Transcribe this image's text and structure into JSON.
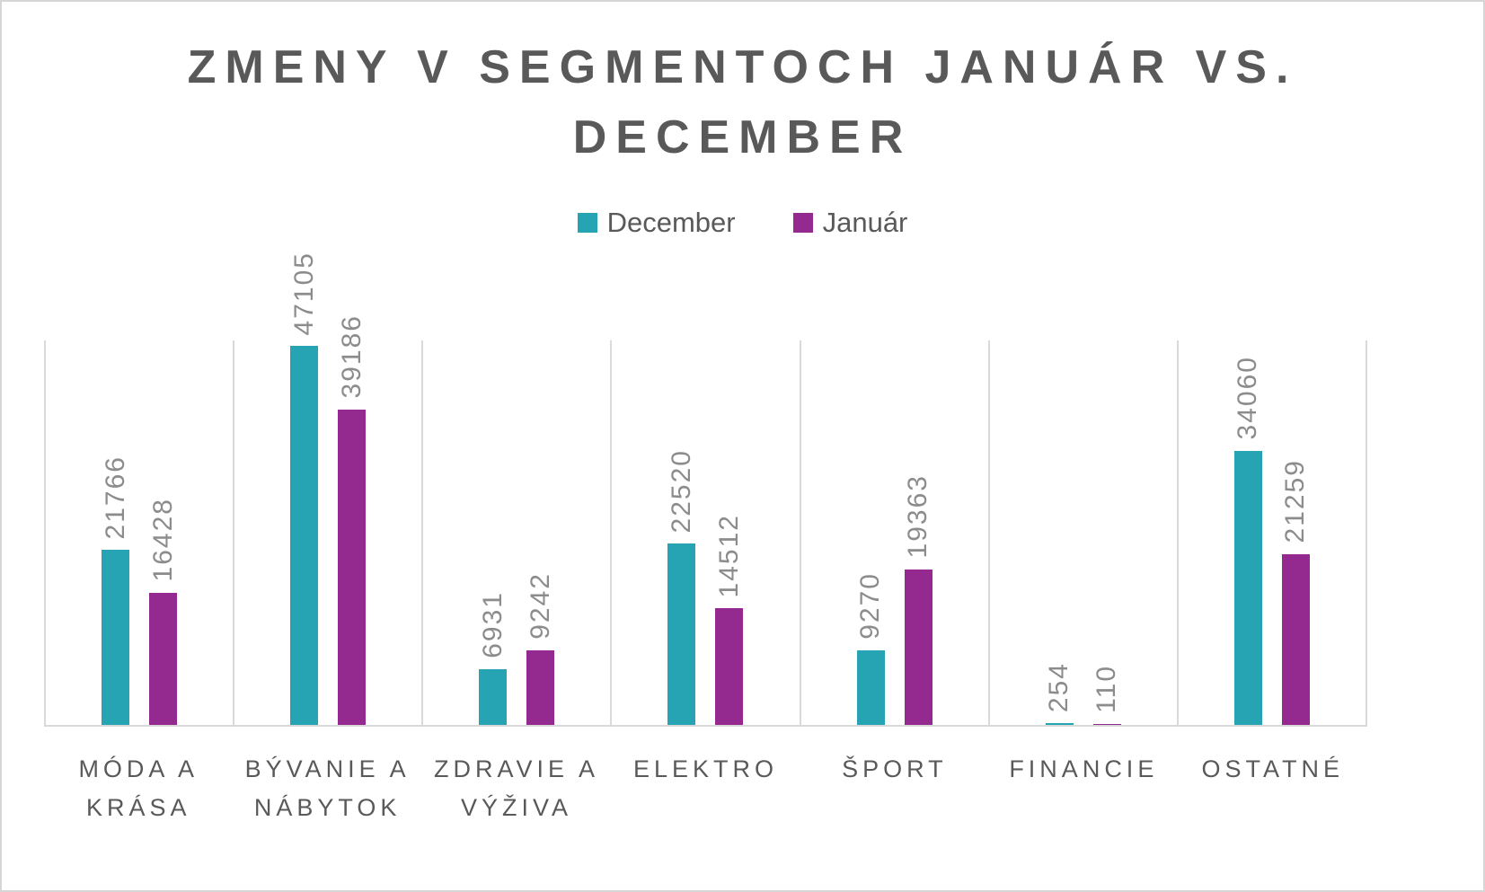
{
  "title": {
    "lines": [
      "ZMENY V SEGMENTOCH JANUÁR VS.",
      "DECEMBER"
    ]
  },
  "colors": {
    "december": "#26a4b3",
    "januar": "#942990",
    "title_text": "#595959",
    "value_label_text": "#8c8c8c",
    "gridline": "#d9d9d9"
  },
  "chart_data": {
    "type": "bar",
    "title": "ZMENY V SEGMENTOCH JANUÁR VS. DECEMBER",
    "categories": [
      "MÓDA A KRÁSA",
      "BÝVANIE A NÁBYTOK",
      "ZDRAVIE A VÝŽIVA",
      "ELEKTRO",
      "ŠPORT",
      "FINANCIE",
      "OSTATNÉ"
    ],
    "series": [
      {
        "name": "December",
        "slug": "december",
        "color": "#26a4b3",
        "values": [
          21766,
          47105,
          6931,
          22520,
          9270,
          254,
          34060
        ]
      },
      {
        "name": "Január",
        "slug": "januar",
        "color": "#942990",
        "values": [
          16428,
          39186,
          9242,
          14512,
          19363,
          110,
          21259
        ]
      }
    ],
    "legend_position": "top",
    "data_labels": "rotated-vertical-above-bars",
    "xlabel": "",
    "ylabel": "",
    "ylim": [
      0,
      47105
    ],
    "grid": "vertical-category-separators-and-baseline-only"
  }
}
